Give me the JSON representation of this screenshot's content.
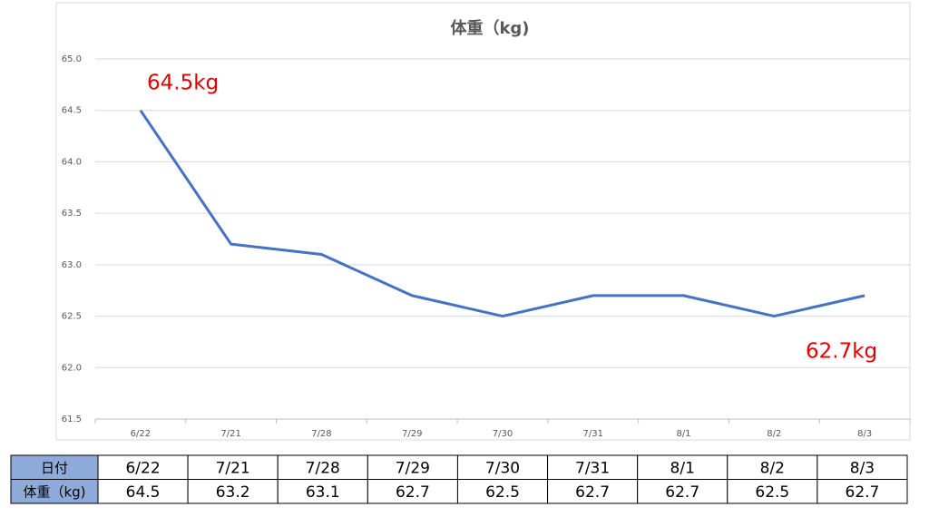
{
  "chart_data": {
    "type": "line",
    "title": "体重（kg)",
    "categories": [
      "6/22",
      "7/21",
      "7/28",
      "7/29",
      "7/30",
      "7/31",
      "8/1",
      "8/2",
      "8/3"
    ],
    "values": [
      64.5,
      63.2,
      63.1,
      62.7,
      62.5,
      62.7,
      62.7,
      62.5,
      62.7
    ],
    "color": "#4472c4",
    "ylim": [
      61.5,
      65
    ],
    "yticks": [
      61.5,
      {
        "value": 62,
        "label": "62.0"
      },
      62.5,
      {
        "value": 63,
        "label": "63.0"
      },
      63.5,
      {
        "value": 64,
        "label": "64.0"
      },
      64.5,
      {
        "value": 65,
        "label": "65.0"
      }
    ],
    "grid": true,
    "annotations": [
      "64.5kg",
      "62.7kg"
    ]
  },
  "table": {
    "header_label": "日付",
    "row_label": "体重（kg)"
  }
}
